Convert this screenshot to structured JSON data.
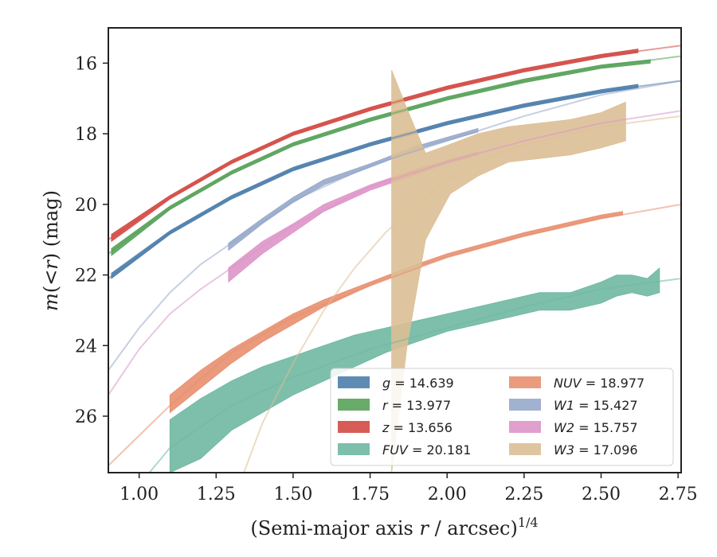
{
  "chart_data": {
    "type": "line",
    "title": "",
    "xlabel": "(Semi-major axis r / arcsec)^{1/4}",
    "ylabel": "m(<r) (mag)",
    "xlim": [
      0.9,
      2.76
    ],
    "ylim": [
      27.6,
      15.0
    ],
    "y_inverted": true,
    "grid": false,
    "legend_position": "lower-right",
    "xticks": [
      "1.00",
      "1.25",
      "1.50",
      "1.75",
      "2.00",
      "2.25",
      "2.50",
      "2.75"
    ],
    "yticks": [
      "16",
      "18",
      "20",
      "22",
      "24",
      "26"
    ],
    "series": [
      {
        "name": "g = 14.639",
        "label_main": "g",
        "label_value": "= 14.639",
        "color": "#4c7eab",
        "model": {
          "x": [
            0.9,
            1.1,
            1.3,
            1.5,
            1.75,
            2.0,
            2.25,
            2.5,
            2.76
          ],
          "y": [
            22.1,
            20.8,
            19.8,
            19.0,
            18.3,
            17.7,
            17.2,
            16.8,
            16.5
          ]
        },
        "data": {
          "x": [
            0.91,
            1.1,
            1.3,
            1.5,
            1.75,
            2.0,
            2.25,
            2.5,
            2.62
          ],
          "y_low": [
            22.1,
            20.85,
            19.85,
            19.05,
            18.35,
            17.75,
            17.25,
            16.85,
            16.7
          ],
          "y_high": [
            21.95,
            20.75,
            19.75,
            18.95,
            18.25,
            17.65,
            17.15,
            16.75,
            16.6
          ]
        }
      },
      {
        "name": "r = 13.977",
        "label_main": "r",
        "label_value": "= 13.977",
        "color": "#58a25a",
        "model": {
          "x": [
            0.9,
            1.1,
            1.3,
            1.5,
            1.75,
            2.0,
            2.25,
            2.5,
            2.76
          ],
          "y": [
            21.4,
            20.1,
            19.1,
            18.3,
            17.6,
            17.0,
            16.5,
            16.1,
            15.8
          ]
        },
        "data": {
          "x": [
            0.91,
            1.1,
            1.3,
            1.5,
            1.75,
            2.0,
            2.25,
            2.5,
            2.66
          ],
          "y_low": [
            21.45,
            20.15,
            19.15,
            18.35,
            17.65,
            17.05,
            16.55,
            16.15,
            16.0
          ],
          "y_high": [
            21.25,
            20.05,
            19.05,
            18.25,
            17.55,
            16.95,
            16.45,
            16.05,
            15.9
          ]
        }
      },
      {
        "name": "z = 13.656",
        "label_main": "z",
        "label_value": "= 13.656",
        "color": "#d34a43",
        "model": {
          "x": [
            0.9,
            1.1,
            1.3,
            1.5,
            1.75,
            2.0,
            2.25,
            2.5,
            2.76
          ],
          "y": [
            21.0,
            19.8,
            18.8,
            18.0,
            17.3,
            16.7,
            16.2,
            15.8,
            15.5
          ]
        },
        "data": {
          "x": [
            0.91,
            1.1,
            1.3,
            1.5,
            1.75,
            2.0,
            2.25,
            2.5,
            2.62
          ],
          "y_low": [
            21.05,
            19.85,
            18.85,
            18.05,
            17.35,
            16.75,
            16.25,
            15.85,
            15.7
          ],
          "y_high": [
            20.85,
            19.75,
            18.75,
            17.95,
            17.25,
            16.65,
            16.15,
            15.75,
            15.6
          ]
        }
      },
      {
        "name": "FUV = 20.181",
        "label_main": "FUV",
        "label_value": "= 20.181",
        "color": "#6fb8a2",
        "model": {
          "x": [
            0.9,
            1.1,
            1.3,
            1.5,
            1.75,
            2.0,
            2.25,
            2.5,
            2.76
          ],
          "y": [
            29.0,
            26.9,
            25.7,
            24.9,
            24.1,
            23.5,
            22.9,
            22.4,
            22.1
          ]
        },
        "data": {
          "x": [
            1.1,
            1.2,
            1.3,
            1.4,
            1.5,
            1.6,
            1.7,
            1.8,
            1.9,
            2.0,
            2.1,
            2.2,
            2.25,
            2.3,
            2.4,
            2.5,
            2.55,
            2.6,
            2.65,
            2.69
          ],
          "y_low": [
            27.6,
            27.2,
            26.4,
            25.9,
            25.4,
            25.0,
            24.6,
            24.2,
            23.9,
            23.6,
            23.4,
            23.2,
            23.1,
            23.0,
            23.0,
            22.8,
            22.6,
            22.5,
            22.6,
            22.5
          ],
          "y_high": [
            26.1,
            25.5,
            25.0,
            24.6,
            24.3,
            24.0,
            23.7,
            23.5,
            23.3,
            23.1,
            22.9,
            22.7,
            22.6,
            22.5,
            22.5,
            22.2,
            22.0,
            22.0,
            22.1,
            21.8
          ]
        }
      },
      {
        "name": "NUV = 18.977",
        "label_main": "NUV",
        "label_value": "= 18.977",
        "color": "#e88f6f",
        "model": {
          "x": [
            0.9,
            1.1,
            1.3,
            1.5,
            1.75,
            2.0,
            2.25,
            2.5,
            2.76
          ],
          "y": [
            27.4,
            25.7,
            24.2,
            23.2,
            22.3,
            21.5,
            20.9,
            20.4,
            20.0
          ]
        },
        "data": {
          "x": [
            1.1,
            1.2,
            1.3,
            1.4,
            1.5,
            1.6,
            1.75,
            1.9,
            2.0,
            2.25,
            2.5,
            2.57
          ],
          "y_low": [
            25.9,
            25.2,
            24.5,
            23.9,
            23.4,
            22.9,
            22.3,
            21.8,
            21.5,
            20.9,
            20.4,
            20.3
          ],
          "y_high": [
            25.4,
            24.7,
            24.1,
            23.6,
            23.1,
            22.7,
            22.2,
            21.7,
            21.4,
            20.8,
            20.3,
            20.2
          ]
        }
      },
      {
        "name": "W1 = 15.427",
        "label_main": "W1",
        "label_value": "= 15.427",
        "color": "#97a8cb",
        "model": {
          "x": [
            0.9,
            1.0,
            1.1,
            1.2,
            1.3,
            1.5,
            1.75,
            2.0,
            2.25,
            2.5,
            2.76
          ],
          "y": [
            24.7,
            23.5,
            22.5,
            21.7,
            21.1,
            19.9,
            18.9,
            18.2,
            17.5,
            16.9,
            16.5
          ]
        },
        "data": {
          "x": [
            1.29,
            1.4,
            1.5,
            1.6,
            1.75,
            1.9,
            2.0,
            2.1
          ],
          "y_low": [
            21.3,
            20.55,
            19.95,
            19.45,
            18.95,
            18.45,
            18.2,
            17.95
          ],
          "y_high": [
            21.1,
            20.4,
            19.8,
            19.3,
            18.85,
            18.35,
            18.1,
            17.85
          ]
        }
      },
      {
        "name": "W2 = 15.757",
        "label_main": "W2",
        "label_value": "= 15.757",
        "color": "#dd95c8",
        "model": {
          "x": [
            0.9,
            1.0,
            1.1,
            1.2,
            1.3,
            1.5,
            1.75,
            2.0,
            2.25,
            2.5,
            2.76
          ],
          "y": [
            25.4,
            24.1,
            23.1,
            22.4,
            21.8,
            20.6,
            19.5,
            18.8,
            18.2,
            17.7,
            17.35
          ]
        },
        "data": {
          "x": [
            1.29,
            1.4,
            1.5,
            1.6,
            1.75,
            1.9,
            2.0,
            2.1
          ],
          "y_low": [
            22.2,
            21.4,
            20.8,
            20.2,
            19.6,
            19.15,
            18.85,
            18.6
          ],
          "y_high": [
            21.8,
            21.05,
            20.55,
            20.0,
            19.45,
            19.0,
            18.75,
            18.5
          ]
        }
      },
      {
        "name": "W3 = 17.096",
        "label_main": "W3",
        "label_value": "= 17.096",
        "color": "#dcbf95",
        "model": {
          "x": [
            1.34,
            1.4,
            1.5,
            1.6,
            1.7,
            1.8,
            1.9,
            2.0,
            2.1,
            2.25,
            2.5,
            2.76
          ],
          "y": [
            27.6,
            26.2,
            24.5,
            23.0,
            21.8,
            20.8,
            20.0,
            19.3,
            18.8,
            18.3,
            17.8,
            17.5
          ]
        },
        "data": {
          "x": [
            1.82,
            1.87,
            1.93,
            2.01,
            2.1,
            2.2,
            2.3,
            2.4,
            2.5,
            2.58
          ],
          "y_low": [
            27.6,
            24.0,
            21.0,
            19.7,
            19.2,
            18.8,
            18.7,
            18.6,
            18.4,
            18.2
          ],
          "y_high": [
            16.2,
            17.3,
            18.55,
            18.3,
            18.0,
            17.8,
            17.7,
            17.6,
            17.4,
            17.1
          ]
        }
      }
    ]
  }
}
